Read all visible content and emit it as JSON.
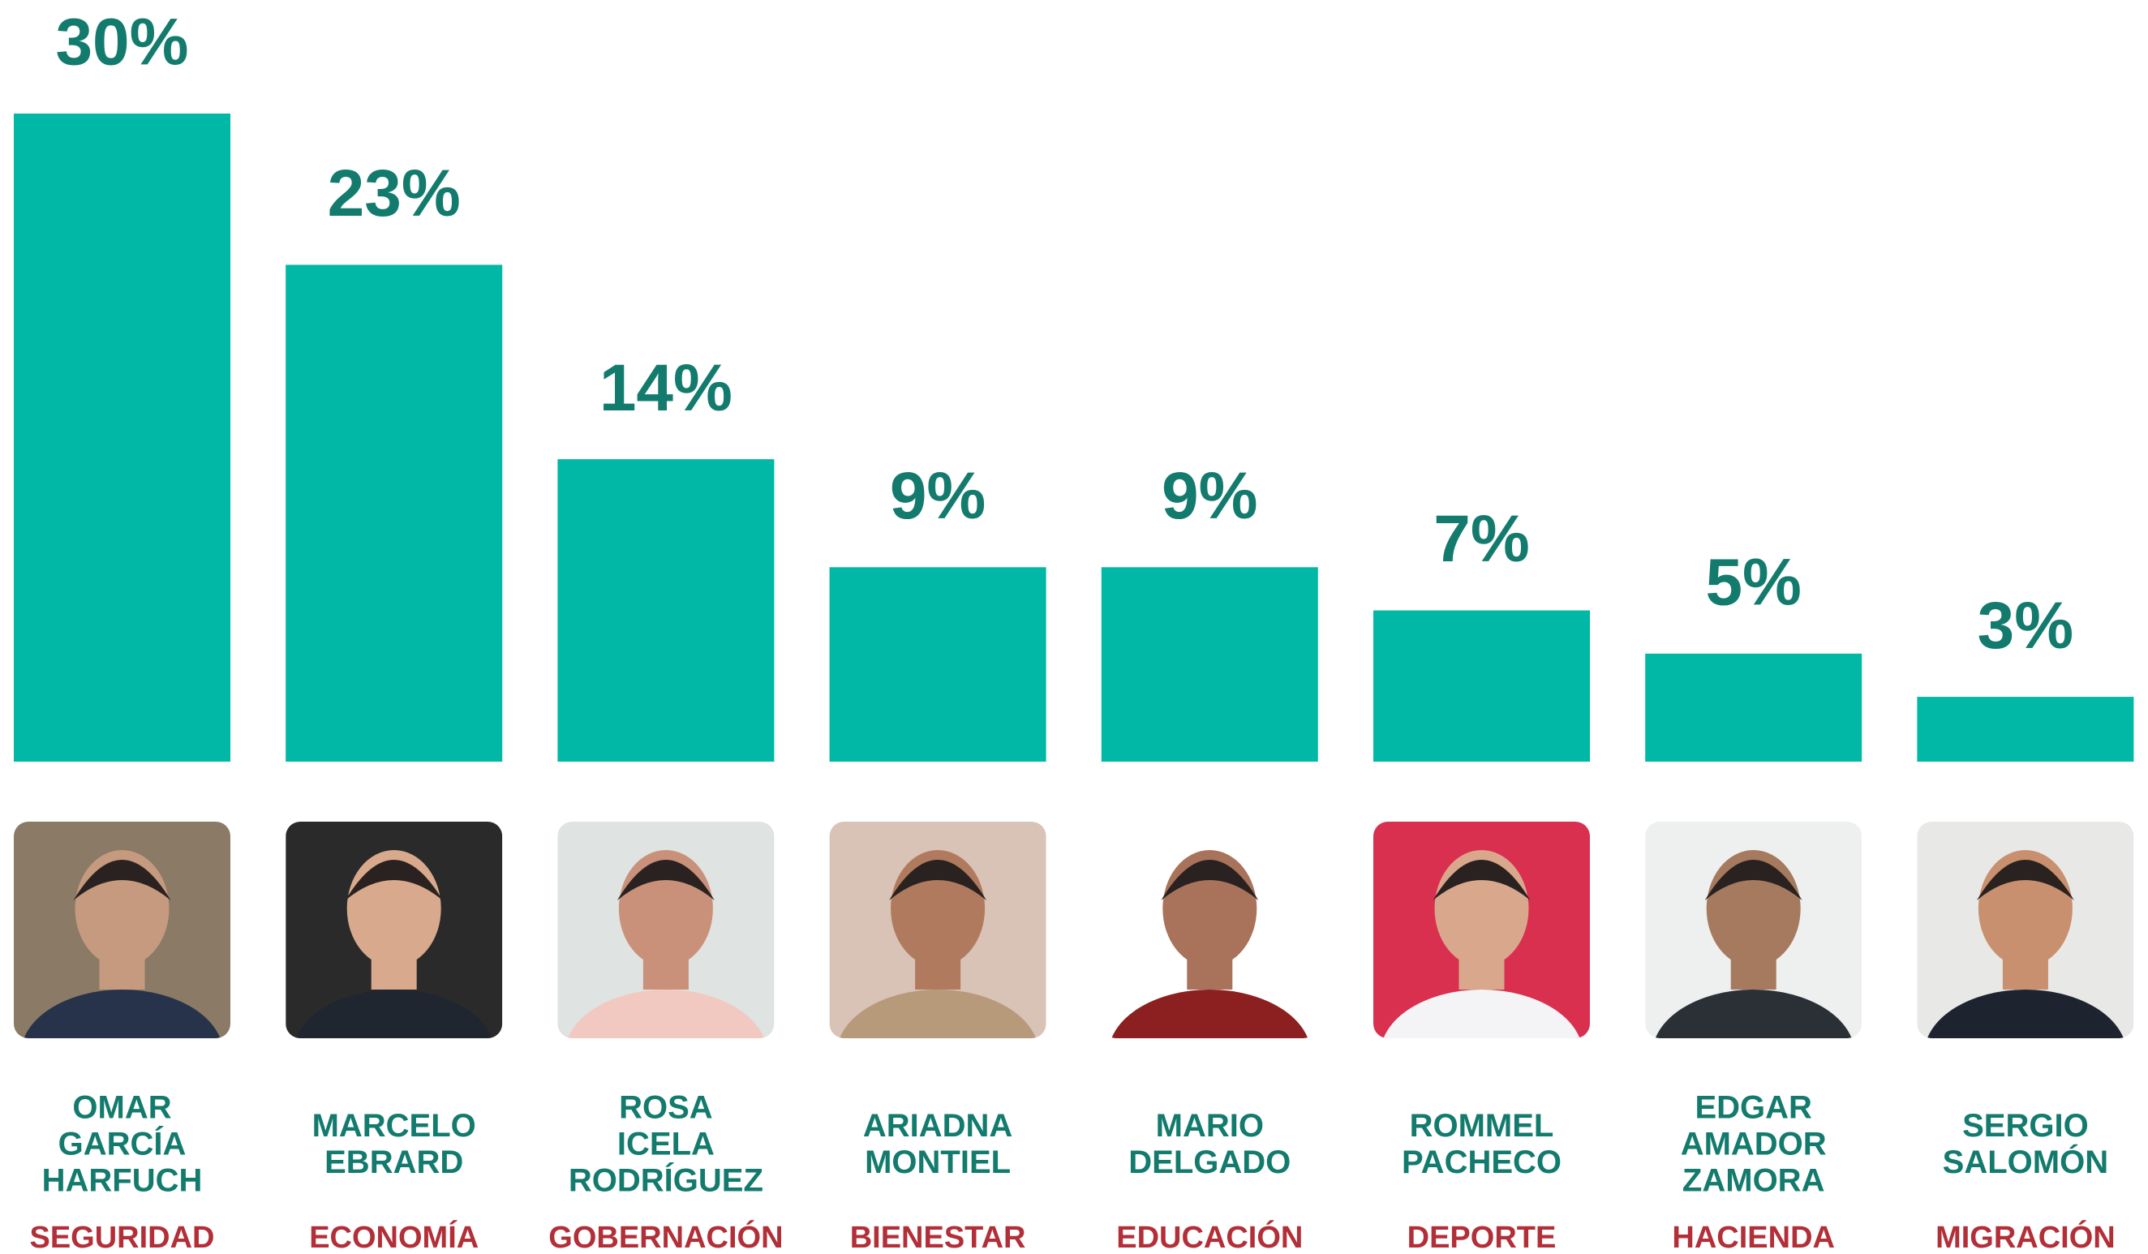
{
  "chart_data": {
    "type": "bar",
    "categories": [
      "SEGURIDAD",
      "ECONOMÍA",
      "GOBERNACIÓN",
      "BIENESTAR",
      "EDUCACIÓN",
      "DEPORTE",
      "HACIENDA",
      "MIGRACIÓN"
    ],
    "names": [
      [
        "OMAR",
        "GARCÍA",
        "HARFUCH"
      ],
      [
        "MARCELO",
        "EBRARD"
      ],
      [
        "ROSA",
        "ICELA",
        "RODRÍGUEZ"
      ],
      [
        "ARIADNA",
        "MONTIEL"
      ],
      [
        "MARIO",
        "DELGADO"
      ],
      [
        "ROMMEL",
        "PACHECO"
      ],
      [
        "EDGAR",
        "AMADOR",
        "ZAMORA"
      ],
      [
        "SERGIO",
        "SALOMÓN"
      ]
    ],
    "values": [
      30,
      23,
      14,
      9,
      9,
      7,
      5,
      3
    ],
    "value_labels": [
      "30%",
      "23%",
      "14%",
      "9%",
      "9%",
      "7%",
      "5%",
      "3%"
    ],
    "color": "#00b8a5",
    "ylim": [
      0,
      30
    ]
  }
}
